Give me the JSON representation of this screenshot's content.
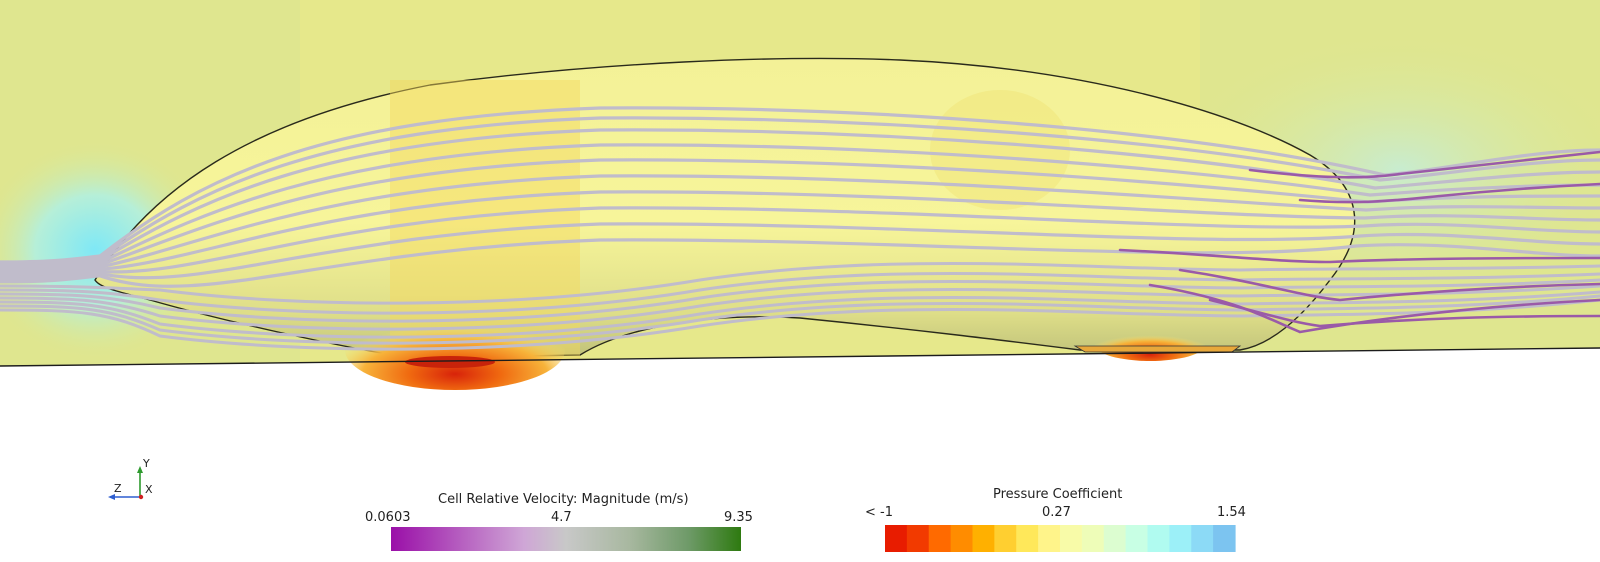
{
  "axes": {
    "y": "Y",
    "z": "Z",
    "x": "X",
    "colors": {
      "y": "#2e9a2e",
      "z": "#2f5fd0",
      "x": "#d02020"
    }
  },
  "velocity_legend": {
    "title": "Cell Relative Velocity: Magnitude (m/s)",
    "min": "0.0603",
    "mid": "4.7",
    "max": "9.35",
    "colors": [
      "#9a0fa8",
      "#b65fc0",
      "#cfa6d6",
      "#c8c8c8",
      "#a8b8a0",
      "#6e9a68",
      "#2e7a10"
    ]
  },
  "pressure_legend": {
    "title": "Pressure Coefficient",
    "min": "< -1",
    "mid": "0.27",
    "max": "1.54",
    "colors": [
      "#e81c00",
      "#ff6a00",
      "#ffb000",
      "#ffee80",
      "#f4ffb0",
      "#c8ffe0",
      "#9cf0f8",
      "#7cc4f0"
    ]
  },
  "streamline_colors": {
    "fast": "#c0bccb",
    "slow": "#9a5aa8"
  },
  "body_colors": {
    "field": "#dfe78f",
    "hull": "#f5f490"
  }
}
